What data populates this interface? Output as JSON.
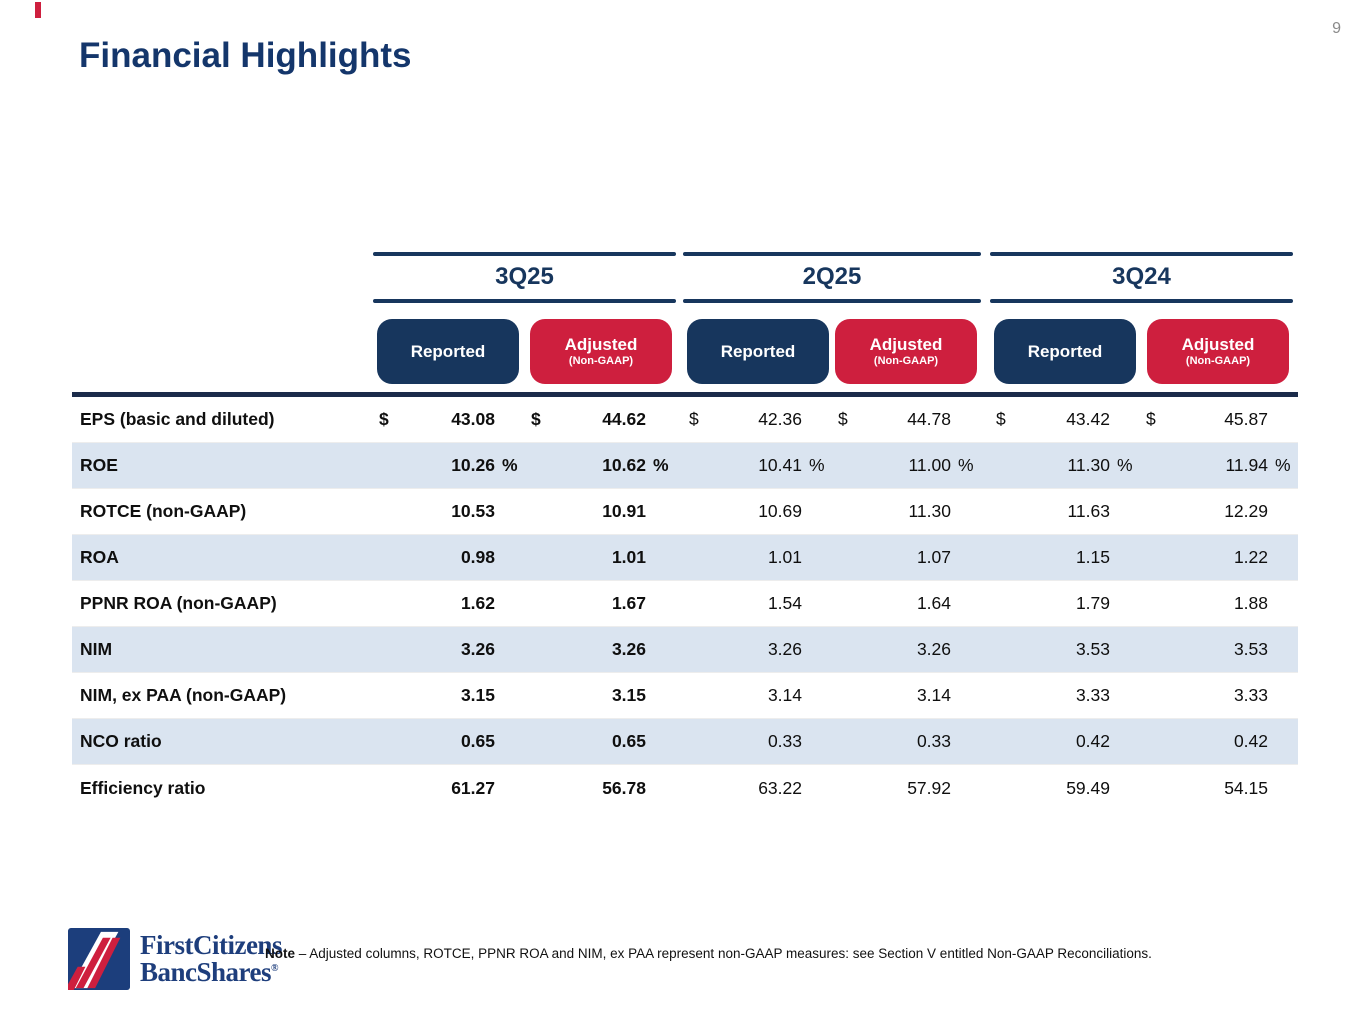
{
  "page_number": "9",
  "title": "Financial Highlights",
  "colors": {
    "navy": "#17365D",
    "red": "#CE1F3E",
    "stripe_blue": "#DAE4F0",
    "title_navy": "#14366B"
  },
  "table": {
    "groups": [
      {
        "label": "3Q25",
        "columns": [
          {
            "label": "Reported"
          },
          {
            "label": "Adjusted",
            "sublabel": "(Non-GAAP)"
          }
        ]
      },
      {
        "label": "2Q25",
        "columns": [
          {
            "label": "Reported"
          },
          {
            "label": "Adjusted",
            "sublabel": "(Non-GAAP)"
          }
        ]
      },
      {
        "label": "3Q24",
        "columns": [
          {
            "label": "Reported"
          },
          {
            "label": "Adjusted",
            "sublabel": "(Non-GAAP)"
          }
        ]
      }
    ],
    "rows": [
      {
        "label": "EPS (basic and diluted)",
        "prefix": "$",
        "suffix": "",
        "values": [
          "43.08",
          "44.62",
          "42.36",
          "44.78",
          "43.42",
          "45.87"
        ]
      },
      {
        "label": "ROE",
        "prefix": "",
        "suffix": "%",
        "values": [
          "10.26",
          "10.62",
          "10.41",
          "11.00",
          "11.30",
          "11.94"
        ]
      },
      {
        "label": "ROTCE (non-GAAP)",
        "prefix": "",
        "suffix": "",
        "values": [
          "10.53",
          "10.91",
          "10.69",
          "11.30",
          "11.63",
          "12.29"
        ]
      },
      {
        "label": "ROA",
        "prefix": "",
        "suffix": "",
        "values": [
          "0.98",
          "1.01",
          "1.01",
          "1.07",
          "1.15",
          "1.22"
        ]
      },
      {
        "label": "PPNR ROA (non-GAAP)",
        "prefix": "",
        "suffix": "",
        "values": [
          "1.62",
          "1.67",
          "1.54",
          "1.64",
          "1.79",
          "1.88"
        ]
      },
      {
        "label": "NIM",
        "prefix": "",
        "suffix": "",
        "values": [
          "3.26",
          "3.26",
          "3.26",
          "3.26",
          "3.53",
          "3.53"
        ]
      },
      {
        "label": "NIM, ex PAA (non-GAAP)",
        "prefix": "",
        "suffix": "",
        "values": [
          "3.15",
          "3.15",
          "3.14",
          "3.14",
          "3.33",
          "3.33"
        ]
      },
      {
        "label": "NCO ratio",
        "prefix": "",
        "suffix": "",
        "values": [
          "0.65",
          "0.65",
          "0.33",
          "0.33",
          "0.42",
          "0.42"
        ]
      },
      {
        "label": "Efficiency ratio",
        "prefix": "",
        "suffix": "",
        "values": [
          "61.27",
          "56.78",
          "63.22",
          "57.92",
          "59.49",
          "54.15"
        ]
      }
    ]
  },
  "footer": {
    "logo_line1": "FirstCitizens",
    "logo_line2": "BancShares",
    "logo_registered": "®",
    "note_label": "Note",
    "note_text": "–  Adjusted columns, ROTCE, PPNR ROA and NIM, ex PAA represent non-GAAP measures: see Section V entitled Non-GAAP Reconciliations."
  }
}
